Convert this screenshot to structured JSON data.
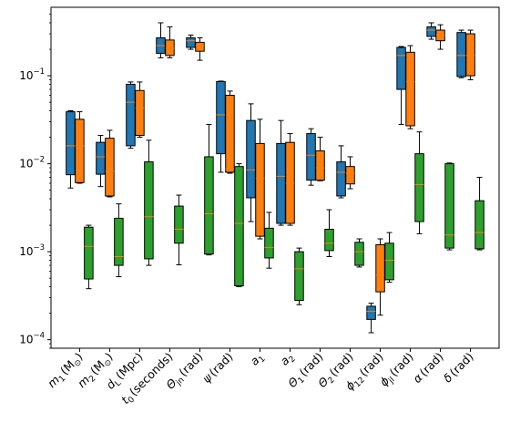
{
  "chart_data": {
    "type": "box",
    "y_scale": "log",
    "ylim": [
      8e-05,
      0.6
    ],
    "y_ticks": [
      {
        "value": 0.0001,
        "base": "10",
        "exp": "−4"
      },
      {
        "value": 0.001,
        "base": "10",
        "exp": "−3"
      },
      {
        "value": 0.01,
        "base": "10",
        "exp": "−2"
      },
      {
        "value": 0.1,
        "base": "10",
        "exp": "−1"
      }
    ],
    "grid": false,
    "legend": "none",
    "colors": {
      "series_blue": "#1f77b4",
      "series_orange": "#ff7f0e",
      "series_green": "#2ca02c",
      "median_line": "#ff7f0e",
      "outline": "#000000"
    },
    "categories": [
      {
        "label": "m",
        "sub": "1",
        "unit": "(M",
        "unit_sub": "⊙",
        "unit_end": ")"
      },
      {
        "label": "m",
        "sub": "2",
        "unit": "(M",
        "unit_sub": "⊙",
        "unit_end": ")"
      },
      {
        "label": "d",
        "sub": "L",
        "unit": "(Mpc)",
        "unit_sub": "",
        "unit_end": ""
      },
      {
        "label": "t",
        "sub": "0",
        "unit": "(seconds)",
        "unit_sub": "",
        "unit_end": ""
      },
      {
        "label": "Θ",
        "sub": "jn",
        "unit": "(rad)",
        "unit_sub": "",
        "unit_end": ""
      },
      {
        "label": "ψ",
        "sub": "",
        "unit": "(rad)",
        "unit_sub": "",
        "unit_end": ""
      },
      {
        "label": "a",
        "sub": "1",
        "unit": "",
        "unit_sub": "",
        "unit_end": ""
      },
      {
        "label": "a",
        "sub": "2",
        "unit": "",
        "unit_sub": "",
        "unit_end": ""
      },
      {
        "label": "Θ",
        "sub": "1",
        "unit": "(rad)",
        "unit_sub": "",
        "unit_end": ""
      },
      {
        "label": "Θ",
        "sub": "2",
        "unit": "(rad)",
        "unit_sub": "",
        "unit_end": ""
      },
      {
        "label": "ϕ",
        "sub": "12",
        "unit": "(rad)",
        "unit_sub": "",
        "unit_end": ""
      },
      {
        "label": "ϕ",
        "sub": "jl",
        "unit": "(rad)",
        "unit_sub": "",
        "unit_end": ""
      },
      {
        "label": "α",
        "sub": "",
        "unit": "(rad)",
        "unit_sub": "",
        "unit_end": ""
      },
      {
        "label": "δ",
        "sub": "",
        "unit": "(rad)",
        "unit_sub": "",
        "unit_end": ""
      }
    ],
    "series": [
      {
        "color": "#1f77b4",
        "boxes": [
          {
            "whislo": 0.0053,
            "q1": 0.0075,
            "med": 0.016,
            "q3": 0.039,
            "whishi": 0.04
          },
          {
            "whislo": 0.0055,
            "q1": 0.0076,
            "med": 0.012,
            "q3": 0.0175,
            "whishi": 0.021
          },
          {
            "whislo": 0.015,
            "q1": 0.016,
            "med": 0.05,
            "q3": 0.08,
            "whishi": 0.085
          },
          {
            "whislo": 0.16,
            "q1": 0.18,
            "med": 0.22,
            "q3": 0.27,
            "whishi": 0.4
          },
          {
            "whislo": 0.2,
            "q1": 0.21,
            "med": 0.25,
            "q3": 0.27,
            "whishi": 0.29
          },
          {
            "whislo": 0.008,
            "q1": 0.013,
            "med": 0.036,
            "q3": 0.086,
            "whishi": 0.087
          },
          {
            "whislo": 0.0022,
            "q1": 0.0041,
            "med": 0.0085,
            "q3": 0.031,
            "whishi": 0.048
          },
          {
            "whislo": 0.002,
            "q1": 0.0021,
            "med": 0.0072,
            "q3": 0.017,
            "whishi": 0.031
          },
          {
            "whislo": 0.0057,
            "q1": 0.0065,
            "med": 0.0125,
            "q3": 0.022,
            "whishi": 0.025
          },
          {
            "whislo": 0.0041,
            "q1": 0.0043,
            "med": 0.008,
            "q3": 0.0105,
            "whishi": 0.016
          },
          {
            "whislo": 0.00012,
            "q1": 0.00017,
            "med": 0.00021,
            "q3": 0.00024,
            "whishi": 0.00026
          },
          {
            "whislo": 0.028,
            "q1": 0.07,
            "med": 0.17,
            "q3": 0.21,
            "whishi": 0.215
          },
          {
            "whislo": 0.26,
            "q1": 0.28,
            "med": 0.33,
            "q3": 0.36,
            "whishi": 0.4
          },
          {
            "whislo": 0.095,
            "q1": 0.098,
            "med": 0.17,
            "q3": 0.31,
            "whishi": 0.33
          }
        ]
      },
      {
        "color": "#ff7f0e",
        "boxes": [
          {
            "whislo": 0.006,
            "q1": 0.0061,
            "med": 0.016,
            "q3": 0.032,
            "whishi": 0.039
          },
          {
            "whislo": 0.0042,
            "q1": 0.0043,
            "med": 0.0082,
            "q3": 0.0195,
            "whishi": 0.024
          },
          {
            "whislo": 0.02,
            "q1": 0.021,
            "med": 0.043,
            "q3": 0.068,
            "whishi": 0.085
          },
          {
            "whislo": 0.16,
            "q1": 0.17,
            "med": 0.205,
            "q3": 0.255,
            "whishi": 0.36
          },
          {
            "whislo": 0.15,
            "q1": 0.19,
            "med": 0.22,
            "q3": 0.24,
            "whishi": 0.27
          },
          {
            "whislo": 0.0078,
            "q1": 0.008,
            "med": 0.0088,
            "q3": 0.06,
            "whishi": 0.067
          },
          {
            "whislo": 0.0014,
            "q1": 0.0015,
            "med": 0.0068,
            "q3": 0.017,
            "whishi": 0.032
          },
          {
            "whislo": 0.002,
            "q1": 0.0021,
            "med": 0.006,
            "q3": 0.0175,
            "whishi": 0.022
          },
          {
            "whislo": 0.0064,
            "q1": 0.0065,
            "med": 0.009,
            "q3": 0.014,
            "whishi": 0.02
          },
          {
            "whislo": 0.0052,
            "q1": 0.0059,
            "med": 0.0078,
            "q3": 0.0093,
            "whishi": 0.012
          },
          {
            "whislo": 0.00019,
            "q1": 0.00035,
            "med": 0.00054,
            "q3": 0.0012,
            "whishi": 0.0014
          },
          {
            "whislo": 0.025,
            "q1": 0.027,
            "med": 0.085,
            "q3": 0.185,
            "whishi": 0.22
          },
          {
            "whislo": 0.2,
            "q1": 0.25,
            "med": 0.29,
            "q3": 0.33,
            "whishi": 0.38
          },
          {
            "whislo": 0.09,
            "q1": 0.1,
            "med": 0.17,
            "q3": 0.3,
            "whishi": 0.33
          }
        ]
      },
      {
        "color": "#2ca02c",
        "boxes": [
          {
            "whislo": 0.00038,
            "q1": 0.00049,
            "med": 0.00115,
            "q3": 0.0019,
            "whishi": 0.002
          },
          {
            "whislo": 0.00052,
            "q1": 0.0007,
            "med": 0.00088,
            "q3": 0.0024,
            "whishi": 0.0035
          },
          {
            "whislo": 0.0007,
            "q1": 0.00083,
            "med": 0.0025,
            "q3": 0.0105,
            "whishi": 0.0185
          },
          {
            "whislo": 0.00071,
            "q1": 0.00125,
            "med": 0.0018,
            "q3": 0.0033,
            "whishi": 0.0044
          },
          {
            "whislo": 0.00092,
            "q1": 0.00094,
            "med": 0.0027,
            "q3": 0.012,
            "whishi": 0.028
          },
          {
            "whislo": 0.0004,
            "q1": 0.00041,
            "med": 0.0021,
            "q3": 0.0093,
            "whishi": 0.01
          },
          {
            "whislo": 0.00065,
            "q1": 0.00085,
            "med": 0.00112,
            "q3": 0.00185,
            "whishi": 0.0028
          },
          {
            "whislo": 0.00025,
            "q1": 0.00028,
            "med": 0.00064,
            "q3": 0.001,
            "whishi": 0.0011
          },
          {
            "whislo": 0.00088,
            "q1": 0.00103,
            "med": 0.00125,
            "q3": 0.0018,
            "whishi": 0.003
          },
          {
            "whislo": 0.00067,
            "q1": 0.0007,
            "med": 0.001,
            "q3": 0.00128,
            "whishi": 0.0014
          },
          {
            "whislo": 0.00045,
            "q1": 0.00048,
            "med": 0.0008,
            "q3": 0.00125,
            "whishi": 0.00165
          },
          {
            "whislo": 0.0016,
            "q1": 0.0022,
            "med": 0.0058,
            "q3": 0.013,
            "whishi": 0.023
          },
          {
            "whislo": 0.00105,
            "q1": 0.0011,
            "med": 0.00155,
            "q3": 0.01,
            "whishi": 0.0102
          },
          {
            "whislo": 0.00105,
            "q1": 0.00108,
            "med": 0.00165,
            "q3": 0.0038,
            "whishi": 0.007
          }
        ]
      }
    ]
  }
}
